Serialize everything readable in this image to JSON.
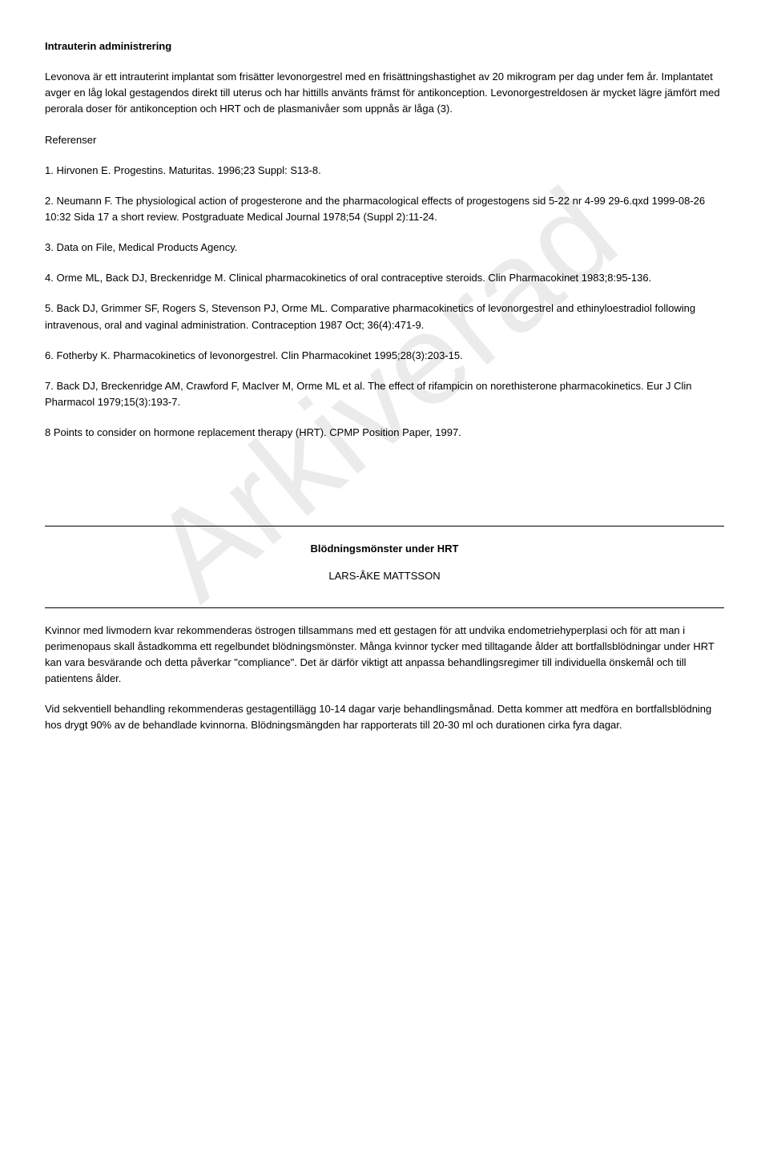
{
  "watermark": "Arkiverad",
  "heading1": "Intrauterin administrering",
  "para1": "Levonova är ett intrauterint implantat som frisätter levonorgestrel med en frisättningshastighet av 20 mikrogram per dag under fem år. Implantatet avger en låg lokal gestagendos direkt till uterus och har hittills använts främst för antikonception. Levonorgestreldosen är mycket lägre jämfört med perorala doser för antikonception och HRT och de plasmanivåer som uppnås är låga (3).",
  "ref_heading": "Referenser",
  "refs": [
    "1. Hirvonen E. Progestins. Maturitas. 1996;23 Suppl: S13-8.",
    "2. Neumann F. The physiological action of progesterone and the pharmacological effects of progestogens sid 5-22 nr 4-99 29-6.qxd 1999-08-26 10:32 Sida 17 a short review. Postgraduate Medical Journal 1978;54 (Suppl 2):11-24.",
    "3. Data on File, Medical Products Agency.",
    "4. Orme ML, Back DJ, Breckenridge M. Clinical pharmacokinetics of oral contraceptive steroids. Clin Pharmacokinet 1983;8:95-136.",
    "5. Back DJ, Grimmer SF, Rogers S, Stevenson PJ, Orme ML. Comparative pharmacokinetics of levonorgestrel and ethinyloestradiol following intravenous, oral and vaginal administration. Contraception 1987 Oct; 36(4):471-9.",
    "6. Fotherby K. Pharmacokinetics of levonorgestrel. Clin Pharmacokinet 1995;28(3):203-15.",
    "7. Back DJ, Breckenridge AM, Crawford F, MacIver M, Orme ML et al. The effect of rifampicin on norethisterone pharmacokinetics. Eur J Clin Pharmacol 1979;15(3):193-7.",
    "8 Points to consider on hormone replacement therapy (HRT). CPMP Position Paper, 1997."
  ],
  "section2_title": "Blödningsmönster under HRT",
  "section2_author": "LARS-ÅKE MATTSSON",
  "para2": "Kvinnor med livmodern kvar rekommenderas östrogen tillsammans med ett gestagen för att undvika endometriehyperplasi och för att man i perimenopaus skall åstadkomma ett regelbundet blödningsmönster. Många kvinnor tycker med tilltagande ålder att bortfallsblödningar under HRT kan vara besvärande och detta påverkar \"compliance\". Det är därför viktigt att anpassa behandlingsregimer till individuella önskemål och till patientens ålder.",
  "para3": "Vid sekventiell behandling rekommenderas gestagentillägg 10-14 dagar varje behandlingsmånad. Detta kommer att medföra en bortfallsblödning hos drygt 90% av de behandlade kvinnorna. Blödningsmängden har rapporterats till 20-30 ml och durationen cirka fyra dagar."
}
